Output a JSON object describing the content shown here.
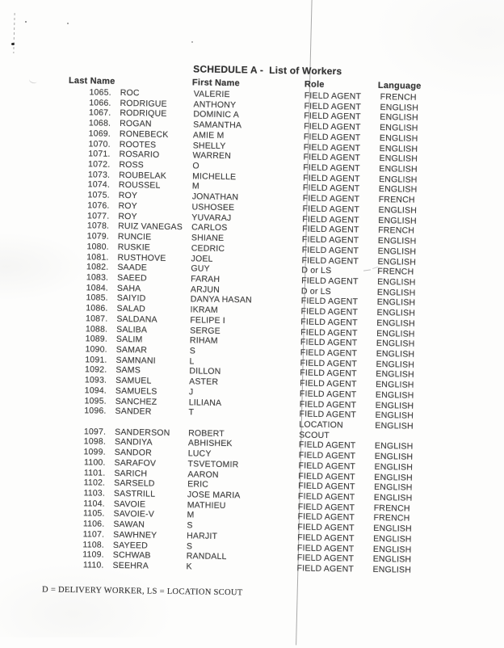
{
  "page": {
    "title": "SCHEDULE A -  List of Workers",
    "columns": [
      "Last Name",
      "First Name",
      "Role",
      "Language"
    ],
    "footnote": "D = DELIVERY WORKER, LS = LOCATION SCOUT"
  },
  "rows": [
    {
      "num": "1065.",
      "last": "ROC",
      "first": "VALERIE",
      "role": "FIELD AGENT",
      "lang": "FRENCH"
    },
    {
      "num": "1066.",
      "last": "RODRIGUE",
      "first": "ANTHONY",
      "role": "FIELD AGENT",
      "lang": "ENGLISH"
    },
    {
      "num": "1067.",
      "last": "RODRIQUE",
      "first": "DOMINIC A",
      "role": "FIELD AGENT",
      "lang": "ENGLISH"
    },
    {
      "num": "1068.",
      "last": "ROGAN",
      "first": "SAMANTHA",
      "role": "FIELD AGENT",
      "lang": "ENGLISH"
    },
    {
      "num": "1069.",
      "last": "RONEBECK",
      "first": "AMIE M",
      "role": "FIELD AGENT",
      "lang": "ENGLISH"
    },
    {
      "num": "1070.",
      "last": "ROOTES",
      "first": "SHELLY",
      "role": "FIELD AGENT",
      "lang": "ENGLISH"
    },
    {
      "num": "1071.",
      "last": "ROSARIO",
      "first": "WARREN",
      "role": "FIELD AGENT",
      "lang": "ENGLISH"
    },
    {
      "num": "1072.",
      "last": "ROSS",
      "first": "O",
      "role": "FIELD AGENT",
      "lang": "ENGLISH"
    },
    {
      "num": "1073.",
      "last": "ROUBELAK",
      "first": "MICHELLE",
      "role": "FIELD AGENT",
      "lang": "ENGLISH"
    },
    {
      "num": "1074.",
      "last": "ROUSSEL",
      "first": "M",
      "role": "FIELD AGENT",
      "lang": "ENGLISH"
    },
    {
      "num": "1075.",
      "last": "ROY",
      "first": "JONATHAN",
      "role": "FIELD AGENT",
      "lang": "FRENCH"
    },
    {
      "num": "1076.",
      "last": "ROY",
      "first": "USHOSEE",
      "role": "FIELD AGENT",
      "lang": "ENGLISH"
    },
    {
      "num": "1077.",
      "last": "ROY",
      "first": "YUVARAJ",
      "role": "FIELD AGENT",
      "lang": "ENGLISH"
    },
    {
      "num": "1078.",
      "last": "RUIZ VANEGAS",
      "first": "CARLOS",
      "role": "FIELD AGENT",
      "lang": "FRENCH"
    },
    {
      "num": "1079.",
      "last": "RUNCIE",
      "first": "SHIANE",
      "role": "FIELD AGENT",
      "lang": "ENGLISH"
    },
    {
      "num": "1080.",
      "last": "RUSKIE",
      "first": "CEDRIC",
      "role": "FIELD AGENT",
      "lang": "ENGLISH"
    },
    {
      "num": "1081.",
      "last": "RUSTHOVE",
      "first": "JOEL",
      "role": "FIELD AGENT",
      "lang": "ENGLISH"
    },
    {
      "num": "1082.",
      "last": "SAADE",
      "first": "GUY",
      "role": "D or LS",
      "lang": "FRENCH"
    },
    {
      "num": "1083.",
      "last": "SAEED",
      "first": "FARAH",
      "role": "FIELD AGENT",
      "lang": "ENGLISH"
    },
    {
      "num": "1084.",
      "last": "SAHA",
      "first": "ARJUN",
      "role": "D or LS",
      "lang": "ENGLISH"
    },
    {
      "num": "1085.",
      "last": "SAIYID",
      "first": "DANYA HASAN",
      "role": "FIELD AGENT",
      "lang": "ENGLISH"
    },
    {
      "num": "1086.",
      "last": "SALAD",
      "first": "IKRAM",
      "role": "FIELD AGENT",
      "lang": "ENGLISH"
    },
    {
      "num": "1087.",
      "last": "SALDANA",
      "first": "FELIPE I",
      "role": "FIELD AGENT",
      "lang": "ENGLISH"
    },
    {
      "num": "1088.",
      "last": "SALIBA",
      "first": "SERGE",
      "role": "FIELD AGENT",
      "lang": "ENGLISH"
    },
    {
      "num": "1089.",
      "last": "SALIM",
      "first": "RIHAM",
      "role": "FIELD AGENT",
      "lang": "ENGLISH"
    },
    {
      "num": "1090.",
      "last": "SAMAR",
      "first": "S",
      "role": "FIELD AGENT",
      "lang": "ENGLISH"
    },
    {
      "num": "1091.",
      "last": "SAMNANI",
      "first": "L",
      "role": "FIELD AGENT",
      "lang": "ENGLISH"
    },
    {
      "num": "1092.",
      "last": "SAMS",
      "first": "DILLON",
      "role": "FIELD AGENT",
      "lang": "ENGLISH"
    },
    {
      "num": "1093.",
      "last": "SAMUEL",
      "first": "ASTER",
      "role": "FIELD AGENT",
      "lang": "ENGLISH"
    },
    {
      "num": "1094.",
      "last": "SAMUELS",
      "first": "J",
      "role": "FIELD AGENT",
      "lang": "ENGLISH"
    },
    {
      "num": "1095.",
      "last": "SANCHEZ",
      "first": "LILIANA",
      "role": "FIELD AGENT",
      "lang": "ENGLISH"
    },
    {
      "num": "1096.",
      "last": "SANDER",
      "first": "T",
      "role": "FIELD AGENT",
      "lang": "ENGLISH"
    },
    {
      "num": "1097.",
      "last": "SANDERSON",
      "first": "ROBERT",
      "role": "LOCATION SCOUT",
      "lang": "ENGLISH",
      "two_line_role": true
    },
    {
      "num": "1098.",
      "last": "SANDIYA",
      "first": "ABHISHEK",
      "role": "FIELD AGENT",
      "lang": "ENGLISH"
    },
    {
      "num": "1099.",
      "last": "SANDOR",
      "first": "LUCY",
      "role": "FIELD AGENT",
      "lang": "ENGLISH"
    },
    {
      "num": "1100.",
      "last": "SARAFOV",
      "first": "TSVETOMIR",
      "role": "FIELD AGENT",
      "lang": "ENGLISH"
    },
    {
      "num": "1101.",
      "last": "SARICH",
      "first": "AARON",
      "role": "FIELD AGENT",
      "lang": "ENGLISH"
    },
    {
      "num": "1102.",
      "last": "SARSELD",
      "first": "ERIC",
      "role": "FIELD AGENT",
      "lang": "ENGLISH"
    },
    {
      "num": "1103.",
      "last": "SASTRILL",
      "first": "JOSE MARIA",
      "role": "FIELD AGENT",
      "lang": "ENGLISH"
    },
    {
      "num": "1104.",
      "last": "SAVOIE",
      "first": "MATHIEU",
      "role": "FIELD AGENT",
      "lang": "FRENCH"
    },
    {
      "num": "1105.",
      "last": "SAVOIE-V",
      "first": "M",
      "role": "FIELD AGENT",
      "lang": "FRENCH"
    },
    {
      "num": "1106.",
      "last": "SAWAN",
      "first": "S",
      "role": "FIELD AGENT",
      "lang": "ENGLISH"
    },
    {
      "num": "1107.",
      "last": "SAWHNEY",
      "first": "HARJIT",
      "role": "FIELD AGENT",
      "lang": "ENGLISH"
    },
    {
      "num": "1108.",
      "last": "SAYEED",
      "first": "S",
      "role": "FIELD AGENT",
      "lang": "ENGLISH"
    },
    {
      "num": "1109.",
      "last": "SCHWAB",
      "first": "RANDALL",
      "role": "FIELD AGENT",
      "lang": "ENGLISH"
    },
    {
      "num": "1110.",
      "last": "SEEHRA",
      "first": "K",
      "role": "FIELD AGENT",
      "lang": "ENGLISH"
    }
  ],
  "colors": {
    "paper": "#fdfdfc",
    "ink": "#424242",
    "scan_streak": "#707070"
  }
}
